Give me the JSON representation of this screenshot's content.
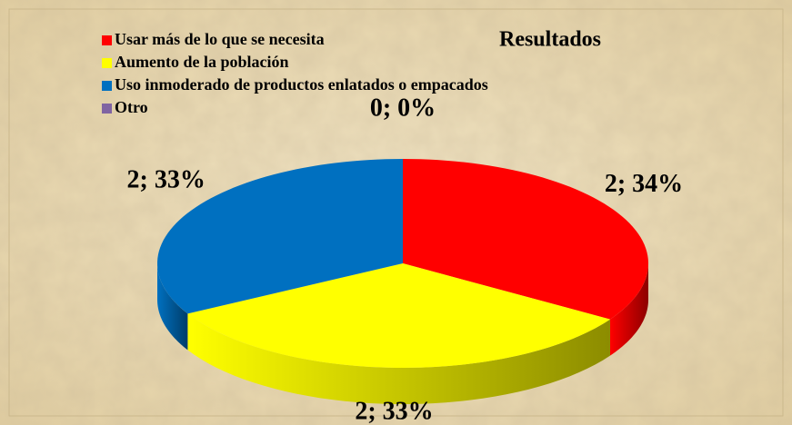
{
  "chart_data": {
    "type": "pie3d",
    "title": "Resultados",
    "categories": [
      "Usar más de lo que se necesita",
      "Aumento de la población",
      "Uso inmoderado de productos enlatados o empacados",
      "Otro"
    ],
    "values": [
      34,
      33,
      33,
      0
    ],
    "value_labels": [
      "2; 34%",
      "2; 33%",
      "2; 33%",
      "0; 0%"
    ],
    "colors": [
      "#ff0000",
      "#ffff00",
      "#0070c0",
      "#8064a2"
    ],
    "legend": "top-left"
  }
}
